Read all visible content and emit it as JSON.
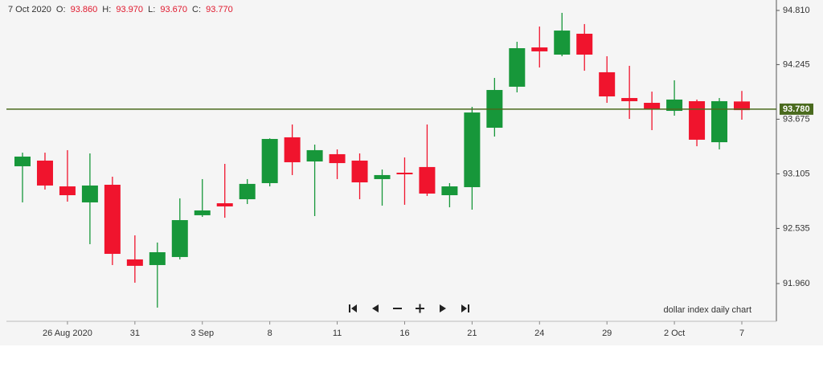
{
  "chart_data": {
    "type": "candlestick",
    "header": {
      "date": "7 Oct 2020",
      "open_label": "O:",
      "open": "93.860",
      "high_label": "H:",
      "high": "93.970",
      "low_label": "L:",
      "low": "93.670",
      "close_label": "C:",
      "close": "93.770"
    },
    "annotation": "dollar index daily chart",
    "categories": [
      null,
      null,
      "26 Aug 2020",
      null,
      null,
      "31",
      null,
      null,
      "3 Sep",
      null,
      null,
      "8",
      null,
      null,
      "11",
      null,
      null,
      "16",
      null,
      null,
      "21",
      null,
      null,
      "24",
      null,
      null,
      "29",
      null,
      null,
      "2 Oct",
      null,
      null,
      "7"
    ],
    "open": [
      93.184,
      93.243,
      92.974,
      92.807,
      92.991,
      92.212,
      92.153,
      92.237,
      92.673,
      92.798,
      92.84,
      93.008,
      93.486,
      93.234,
      93.31,
      93.243,
      93.05,
      93.117,
      93.176,
      92.882,
      92.966,
      93.586,
      94.014,
      94.424,
      94.349,
      94.567,
      94.165,
      93.896,
      93.846,
      93.762,
      93.863,
      93.435,
      93.86
    ],
    "high": [
      93.326,
      93.326,
      93.352,
      93.318,
      93.075,
      92.463,
      92.388,
      92.849,
      93.05,
      93.209,
      93.05,
      93.475,
      93.62,
      93.41,
      93.36,
      93.318,
      93.15,
      93.276,
      93.62,
      93.008,
      93.804,
      94.106,
      94.483,
      94.642,
      94.785,
      94.668,
      94.332,
      94.232,
      93.963,
      94.081,
      93.88,
      93.896,
      93.97
    ],
    "low": [
      92.807,
      92.941,
      92.815,
      92.371,
      92.153,
      91.969,
      91.709,
      92.212,
      92.656,
      92.647,
      92.79,
      92.974,
      93.092,
      92.664,
      93.05,
      92.84,
      92.773,
      92.782,
      92.874,
      92.756,
      92.731,
      93.494,
      93.955,
      94.215,
      94.332,
      94.181,
      93.846,
      93.678,
      93.561,
      93.712,
      93.393,
      93.36,
      93.67
    ],
    "close": [
      93.285,
      92.983,
      92.882,
      92.983,
      92.27,
      92.145,
      92.287,
      92.622,
      92.723,
      92.765,
      93.0,
      93.469,
      93.226,
      93.352,
      93.217,
      93.016,
      93.092,
      93.1,
      92.899,
      92.974,
      93.745,
      93.98,
      94.416,
      94.383,
      94.6,
      94.349,
      93.913,
      93.863,
      93.779,
      93.88,
      93.461,
      93.863,
      93.77
    ],
    "up_color": "#17973a",
    "down_color": "#f0142d",
    "ylim": [
      91.566,
      94.919
    ],
    "yticks": [
      {
        "value": 94.81,
        "label": "94.810"
      },
      {
        "value": 94.245,
        "label": "94.245"
      },
      {
        "value": 93.675,
        "label": "93.675"
      },
      {
        "value": 93.105,
        "label": "93.105"
      },
      {
        "value": 92.535,
        "label": "92.535"
      },
      {
        "value": 91.96,
        "label": "91.960"
      }
    ],
    "reference_line": {
      "value": 93.78,
      "label": "93.780",
      "color": "#4a6a1e"
    },
    "grid": false
  }
}
